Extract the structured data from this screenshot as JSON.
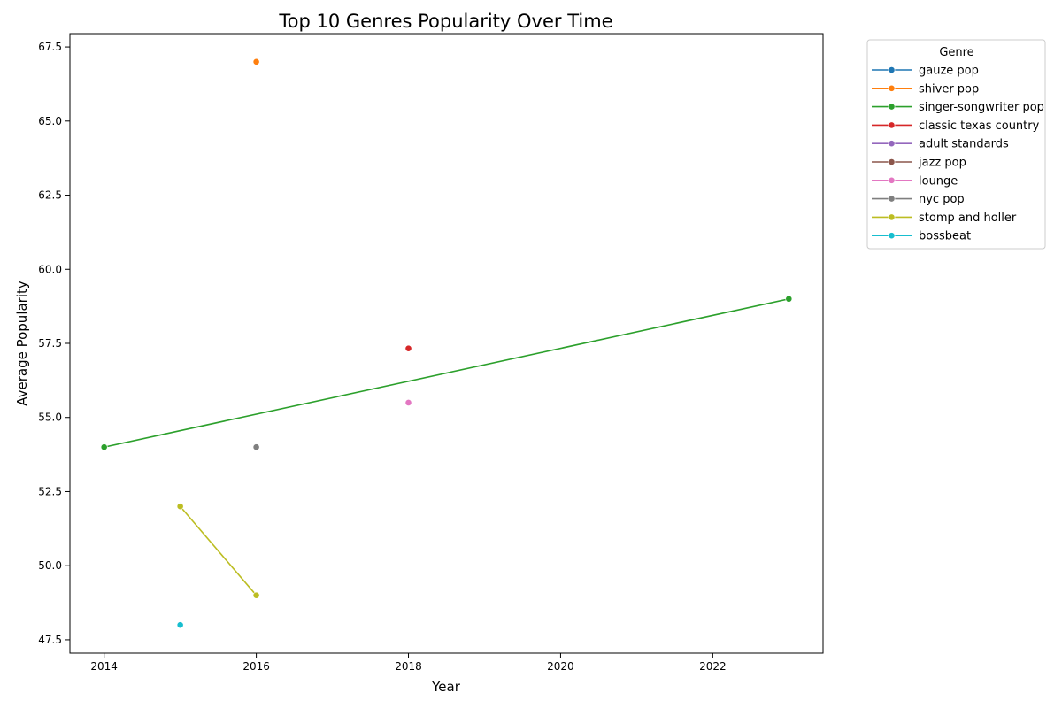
{
  "chart_data": {
    "type": "line",
    "title": "Top 10 Genres Popularity Over Time",
    "xlabel": "Year",
    "ylabel": "Average Popularity",
    "xlim": [
      2013.55,
      2023.45
    ],
    "ylim": [
      47.05,
      67.95
    ],
    "x_ticks": [
      2014,
      2016,
      2018,
      2020,
      2022
    ],
    "y_ticks": [
      47.5,
      50.0,
      52.5,
      55.0,
      57.5,
      60.0,
      62.5,
      65.0,
      67.5
    ],
    "grid": false,
    "legend": {
      "title": "Genre",
      "placement": "outside upper right"
    },
    "series": [
      {
        "name": "gauze pop",
        "color": "#1f77b4",
        "points": []
      },
      {
        "name": "shiver pop",
        "color": "#ff7f0e",
        "points": [
          [
            2016,
            67.0
          ]
        ]
      },
      {
        "name": "singer-songwriter pop",
        "color": "#2ca02c",
        "points": [
          [
            2014,
            54.0
          ],
          [
            2023,
            59.0
          ]
        ]
      },
      {
        "name": "classic texas country",
        "color": "#d62728",
        "points": [
          [
            2018,
            57.33
          ]
        ]
      },
      {
        "name": "adult standards",
        "color": "#9467bd",
        "points": []
      },
      {
        "name": "jazz pop",
        "color": "#8c564b",
        "points": []
      },
      {
        "name": "lounge",
        "color": "#e377c2",
        "points": [
          [
            2018,
            55.5
          ]
        ]
      },
      {
        "name": "nyc pop",
        "color": "#7f7f7f",
        "points": [
          [
            2016,
            54.0
          ]
        ]
      },
      {
        "name": "stomp and holler",
        "color": "#bcbd22",
        "points": [
          [
            2015,
            52.0
          ],
          [
            2016,
            49.0
          ]
        ]
      },
      {
        "name": "bossbeat",
        "color": "#17becf",
        "points": [
          [
            2015,
            48.0
          ]
        ]
      }
    ]
  }
}
